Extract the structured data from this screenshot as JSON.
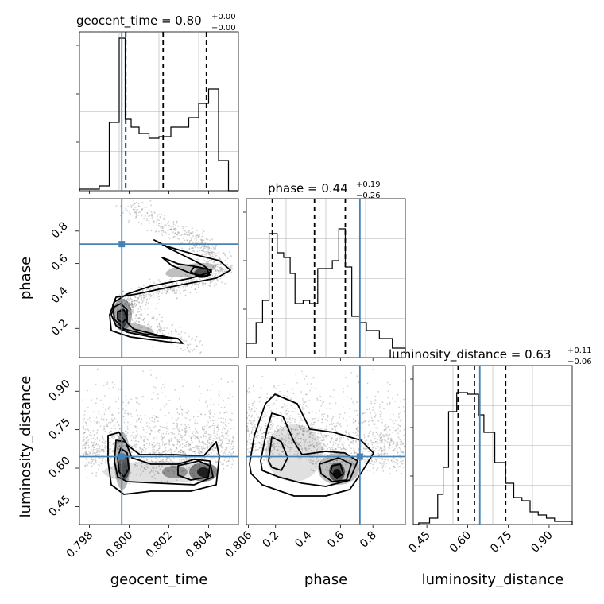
{
  "chart_data": [
    {
      "type": "histogram",
      "variable": "geocent_time",
      "title": {
        "name": "geocent_time",
        "median": "0.80",
        "plus": "+0.00",
        "minus": "−0.00"
      },
      "xlim": [
        0.7975,
        0.8055
      ],
      "ylim": [
        0,
        1
      ],
      "bin_edges": [
        0.7975,
        0.7985,
        0.799,
        0.7995,
        0.7998,
        0.8001,
        0.8005,
        0.801,
        0.8015,
        0.8021,
        0.803,
        0.8035,
        0.804,
        0.8045,
        0.805,
        0.8055
      ],
      "counts": [
        0.01,
        0.03,
        0.43,
        0.96,
        0.45,
        0.4,
        0.36,
        0.33,
        0.34,
        0.4,
        0.46,
        0.55,
        0.64,
        0.19,
        0.0
      ],
      "quantiles": [
        0.79983,
        0.80171,
        0.80389
      ],
      "truth": 0.79963,
      "xticks": [],
      "xlabel": ""
    },
    {
      "type": "density2d",
      "x_variable": "geocent_time",
      "y_variable": "phase",
      "xlim": [
        0.7975,
        0.8055
      ],
      "ylim": [
        0.02,
        1.0
      ],
      "truth": {
        "x": 0.79963,
        "y": 0.72
      },
      "mode_peaks": [
        {
          "x": 0.7996,
          "y": 0.28
        },
        {
          "x": 0.804,
          "y": 0.52
        }
      ],
      "yticks": [
        "0.2",
        "0.4",
        "0.6",
        "0.8"
      ],
      "ytick_values": [
        0.2,
        0.4,
        0.6,
        0.8
      ],
      "ylabel": "phase"
    },
    {
      "type": "histogram",
      "variable": "phase",
      "title": {
        "name": "phase",
        "median": "0.44",
        "plus": "+0.19",
        "minus": "−0.26"
      },
      "xlim": [
        0.02,
        1.0
      ],
      "ylim": [
        0,
        1
      ],
      "bin_edges": [
        0.02,
        0.08,
        0.12,
        0.16,
        0.21,
        0.25,
        0.29,
        0.32,
        0.37,
        0.41,
        0.46,
        0.5,
        0.55,
        0.59,
        0.63,
        0.67,
        0.72,
        0.76,
        0.8,
        0.84,
        0.92,
        1.0
      ],
      "counts": [
        0.09,
        0.22,
        0.36,
        0.78,
        0.66,
        0.63,
        0.53,
        0.34,
        0.36,
        0.34,
        0.56,
        0.56,
        0.61,
        0.81,
        0.57,
        0.26,
        0.22,
        0.17,
        0.17,
        0.12,
        0.06
      ],
      "quantiles": [
        0.18,
        0.44,
        0.63
      ],
      "truth": 0.72,
      "xticks": [],
      "xlabel": ""
    },
    {
      "type": "density2d",
      "x_variable": "geocent_time",
      "y_variable": "luminosity_distance",
      "xlim": [
        0.7975,
        0.8055
      ],
      "ylim": [
        0.38,
        1.0
      ],
      "truth": {
        "x": 0.79963,
        "y": 0.645
      },
      "mode_peaks": [
        {
          "x": 0.7996,
          "y": 0.6
        },
        {
          "x": 0.804,
          "y": 0.6
        }
      ],
      "xticks": [
        "0.798",
        "0.800",
        "0.802",
        "0.804",
        "0.806"
      ],
      "xtick_values": [
        0.798,
        0.8,
        0.802,
        0.804,
        0.806
      ],
      "yticks": [
        "0.45",
        "0.60",
        "0.75",
        "0.90"
      ],
      "ytick_values": [
        0.45,
        0.6,
        0.75,
        0.9
      ],
      "xlabel": "geocent_time",
      "ylabel": "luminosity_distance"
    },
    {
      "type": "density2d",
      "x_variable": "phase",
      "y_variable": "luminosity_distance",
      "xlim": [
        0.02,
        1.0
      ],
      "ylim": [
        0.38,
        1.0
      ],
      "truth": {
        "x": 0.72,
        "y": 0.645
      },
      "mode_peaks": [
        {
          "x": 0.58,
          "y": 0.58
        }
      ],
      "xticks": [
        "0.2",
        "0.4",
        "0.6",
        "0.8"
      ],
      "xtick_values": [
        0.2,
        0.4,
        0.6,
        0.8
      ],
      "xlabel": "phase"
    },
    {
      "type": "histogram",
      "variable": "luminosity_distance",
      "title": {
        "name": "luminosity_distance",
        "median": "0.63",
        "plus": "+0.11",
        "minus": "−0.06"
      },
      "xlim": [
        0.4,
        0.985
      ],
      "ylim": [
        0,
        1
      ],
      "bin_edges": [
        0.4,
        0.42,
        0.46,
        0.49,
        0.51,
        0.53,
        0.56,
        0.6,
        0.64,
        0.66,
        0.7,
        0.74,
        0.77,
        0.8,
        0.83,
        0.86,
        0.89,
        0.92,
        0.985
      ],
      "counts": [
        0.0,
        0.01,
        0.04,
        0.19,
        0.36,
        0.71,
        0.83,
        0.82,
        0.69,
        0.58,
        0.39,
        0.26,
        0.17,
        0.15,
        0.08,
        0.06,
        0.04,
        0.02
      ],
      "quantiles": [
        0.565,
        0.625,
        0.74
      ],
      "truth": 0.645,
      "xticks": [
        "0.45",
        "0.60",
        "0.75",
        "0.90"
      ],
      "xtick_values": [
        0.45,
        0.6,
        0.75,
        0.9
      ],
      "xlabel": "luminosity_distance"
    }
  ],
  "colors": {
    "truth": "#4682b4",
    "hist": "#000000",
    "grid": "#b0b0b0",
    "points": "#7a7a7a"
  }
}
